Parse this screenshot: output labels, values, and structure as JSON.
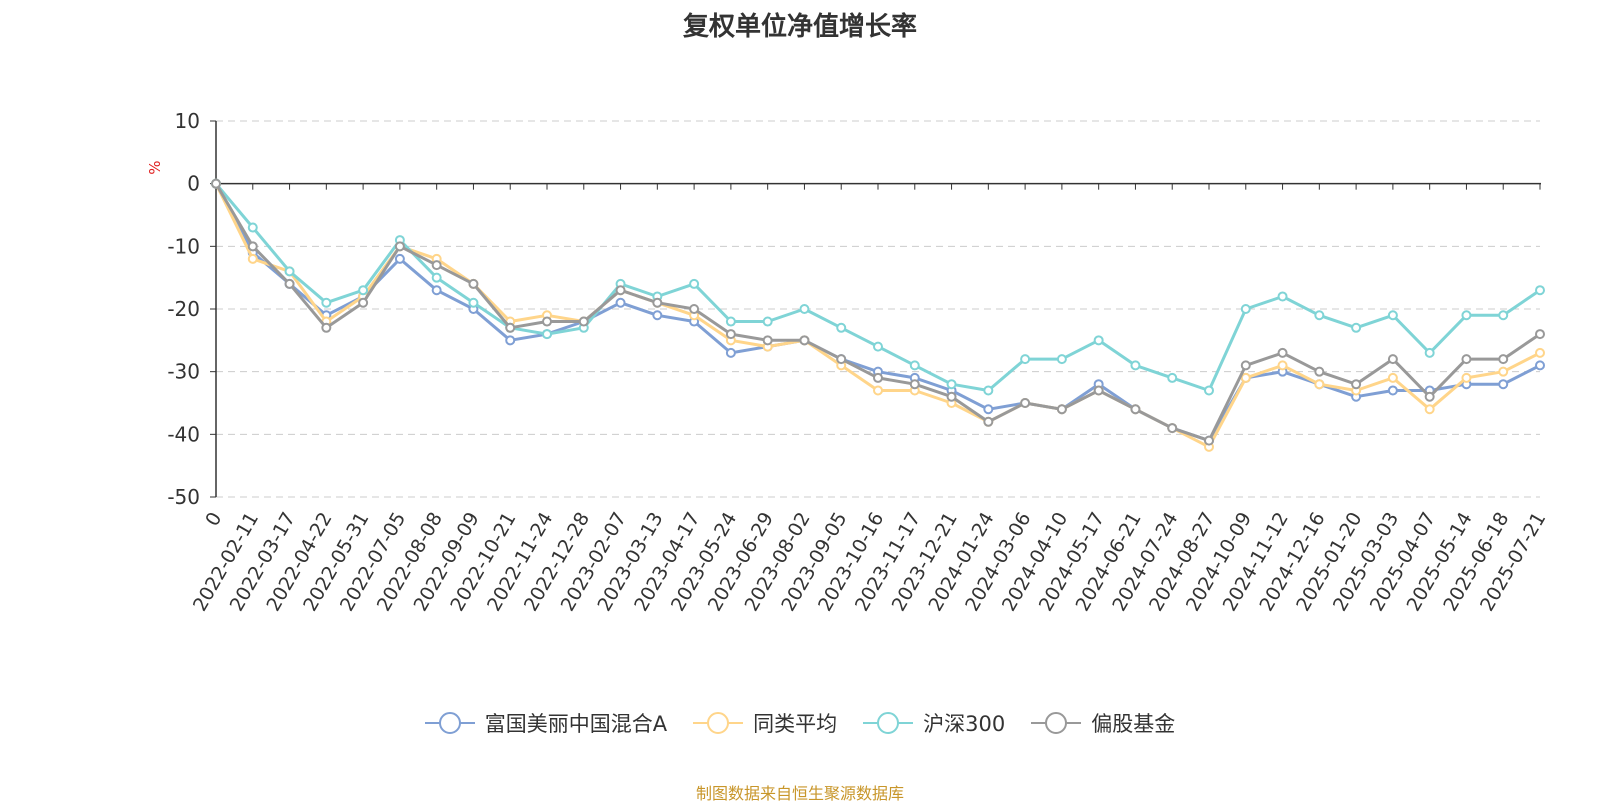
{
  "title": "复权单位净值增长率",
  "source": "制图数据来自恒生聚源数据库",
  "chart_data": {
    "type": "line",
    "title": "复权单位净值增长率",
    "ylabel": "%",
    "xlabel": "",
    "ylim": [
      -50,
      10
    ],
    "yticks": [
      10,
      0,
      -10,
      -20,
      -30,
      -40,
      -50
    ],
    "grid": true,
    "legend_position": "bottom",
    "x": [
      "0",
      "2022-02-11",
      "2022-03-17",
      "2022-04-22",
      "2022-05-31",
      "2022-07-05",
      "2022-08-08",
      "2022-09-09",
      "2022-10-21",
      "2022-11-24",
      "2022-12-28",
      "2023-02-07",
      "2023-03-13",
      "2023-04-17",
      "2023-05-24",
      "2023-06-29",
      "2023-08-02",
      "2023-09-05",
      "2023-10-16",
      "2023-11-17",
      "2023-12-21",
      "2024-01-24",
      "2024-03-06",
      "2024-04-10",
      "2024-05-17",
      "2024-06-21",
      "2024-07-24",
      "2024-08-27",
      "2024-10-09",
      "2024-11-12",
      "2024-12-16",
      "2025-01-20",
      "2025-03-03",
      "2025-04-07",
      "2025-05-14",
      "2025-06-18",
      "2025-07-21"
    ],
    "series": [
      {
        "name": "富国美丽中国混合A",
        "color": "#7f9fd4",
        "values": [
          0,
          -11,
          -16,
          -21,
          -18,
          -12,
          -17,
          -20,
          -25,
          -24,
          -22,
          -19,
          -21,
          -22,
          -27,
          -26,
          -25,
          -28,
          -30,
          -31,
          -33,
          -36,
          -35,
          -36,
          -32,
          -36,
          -39,
          -41,
          -31,
          -30,
          -32,
          -34,
          -33,
          -33,
          -32,
          -32,
          -29
        ]
      },
      {
        "name": "同类平均",
        "color": "#ffd58a",
        "values": [
          0,
          -12,
          -14,
          -22,
          -18,
          -10,
          -12,
          -16,
          -22,
          -21,
          -22,
          -17,
          -19,
          -21,
          -25,
          -26,
          -25,
          -29,
          -33,
          -33,
          -35,
          -38,
          -35,
          -36,
          -33,
          -36,
          -39,
          -42,
          -31,
          -29,
          -32,
          -33,
          -31,
          -36,
          -31,
          -30,
          -27
        ]
      },
      {
        "name": "沪深300",
        "color": "#7fd4d6",
        "values": [
          0,
          -7,
          -14,
          -19,
          -17,
          -9,
          -15,
          -19,
          -23,
          -24,
          -23,
          -16,
          -18,
          -16,
          -22,
          -22,
          -20,
          -23,
          -26,
          -29,
          -32,
          -33,
          -28,
          -28,
          -25,
          -29,
          -31,
          -33,
          -20,
          -18,
          -21,
          -23,
          -21,
          -27,
          -21,
          -21,
          -17
        ]
      },
      {
        "name": "偏股基金",
        "color": "#999999",
        "values": [
          0,
          -10,
          -16,
          -23,
          -19,
          -10,
          -13,
          -16,
          -23,
          -22,
          -22,
          -17,
          -19,
          -20,
          -24,
          -25,
          -25,
          -28,
          -31,
          -32,
          -34,
          -38,
          -35,
          -36,
          -33,
          -36,
          -39,
          -41,
          -29,
          -27,
          -30,
          -32,
          -28,
          -34,
          -28,
          -28,
          -24
        ]
      }
    ]
  }
}
